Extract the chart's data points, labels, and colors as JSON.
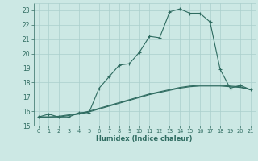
{
  "xlabel": "Humidex (Indice chaleur)",
  "x_values": [
    0,
    1,
    2,
    3,
    4,
    5,
    6,
    7,
    8,
    9,
    10,
    11,
    12,
    13,
    14,
    15,
    16,
    17,
    18,
    19,
    20,
    21
  ],
  "line1_y": [
    15.6,
    15.8,
    15.6,
    15.6,
    15.9,
    15.9,
    17.6,
    18.4,
    19.2,
    19.3,
    20.1,
    21.2,
    21.1,
    22.9,
    23.1,
    22.8,
    22.8,
    22.2,
    18.9,
    17.6,
    17.8,
    17.5
  ],
  "line2_y": [
    15.6,
    15.6,
    15.6,
    15.7,
    15.8,
    15.95,
    16.15,
    16.35,
    16.55,
    16.75,
    16.95,
    17.15,
    17.3,
    17.45,
    17.6,
    17.7,
    17.75,
    17.75,
    17.75,
    17.7,
    17.65,
    17.5
  ],
  "line3_y": [
    15.6,
    15.6,
    15.65,
    15.75,
    15.85,
    16.0,
    16.2,
    16.4,
    16.6,
    16.8,
    17.0,
    17.2,
    17.35,
    17.5,
    17.65,
    17.75,
    17.8,
    17.8,
    17.8,
    17.75,
    17.7,
    17.5
  ],
  "line_color": "#2e6b60",
  "bg_color": "#cce8e4",
  "grid_color": "#aacfcc",
  "ylim": [
    15,
    23.5
  ],
  "xlim": [
    -0.5,
    21.5
  ],
  "yticks": [
    15,
    16,
    17,
    18,
    19,
    20,
    21,
    22,
    23
  ],
  "xticks": [
    0,
    1,
    2,
    3,
    4,
    5,
    6,
    7,
    8,
    9,
    10,
    11,
    12,
    13,
    14,
    15,
    16,
    17,
    18,
    19,
    20,
    21
  ]
}
